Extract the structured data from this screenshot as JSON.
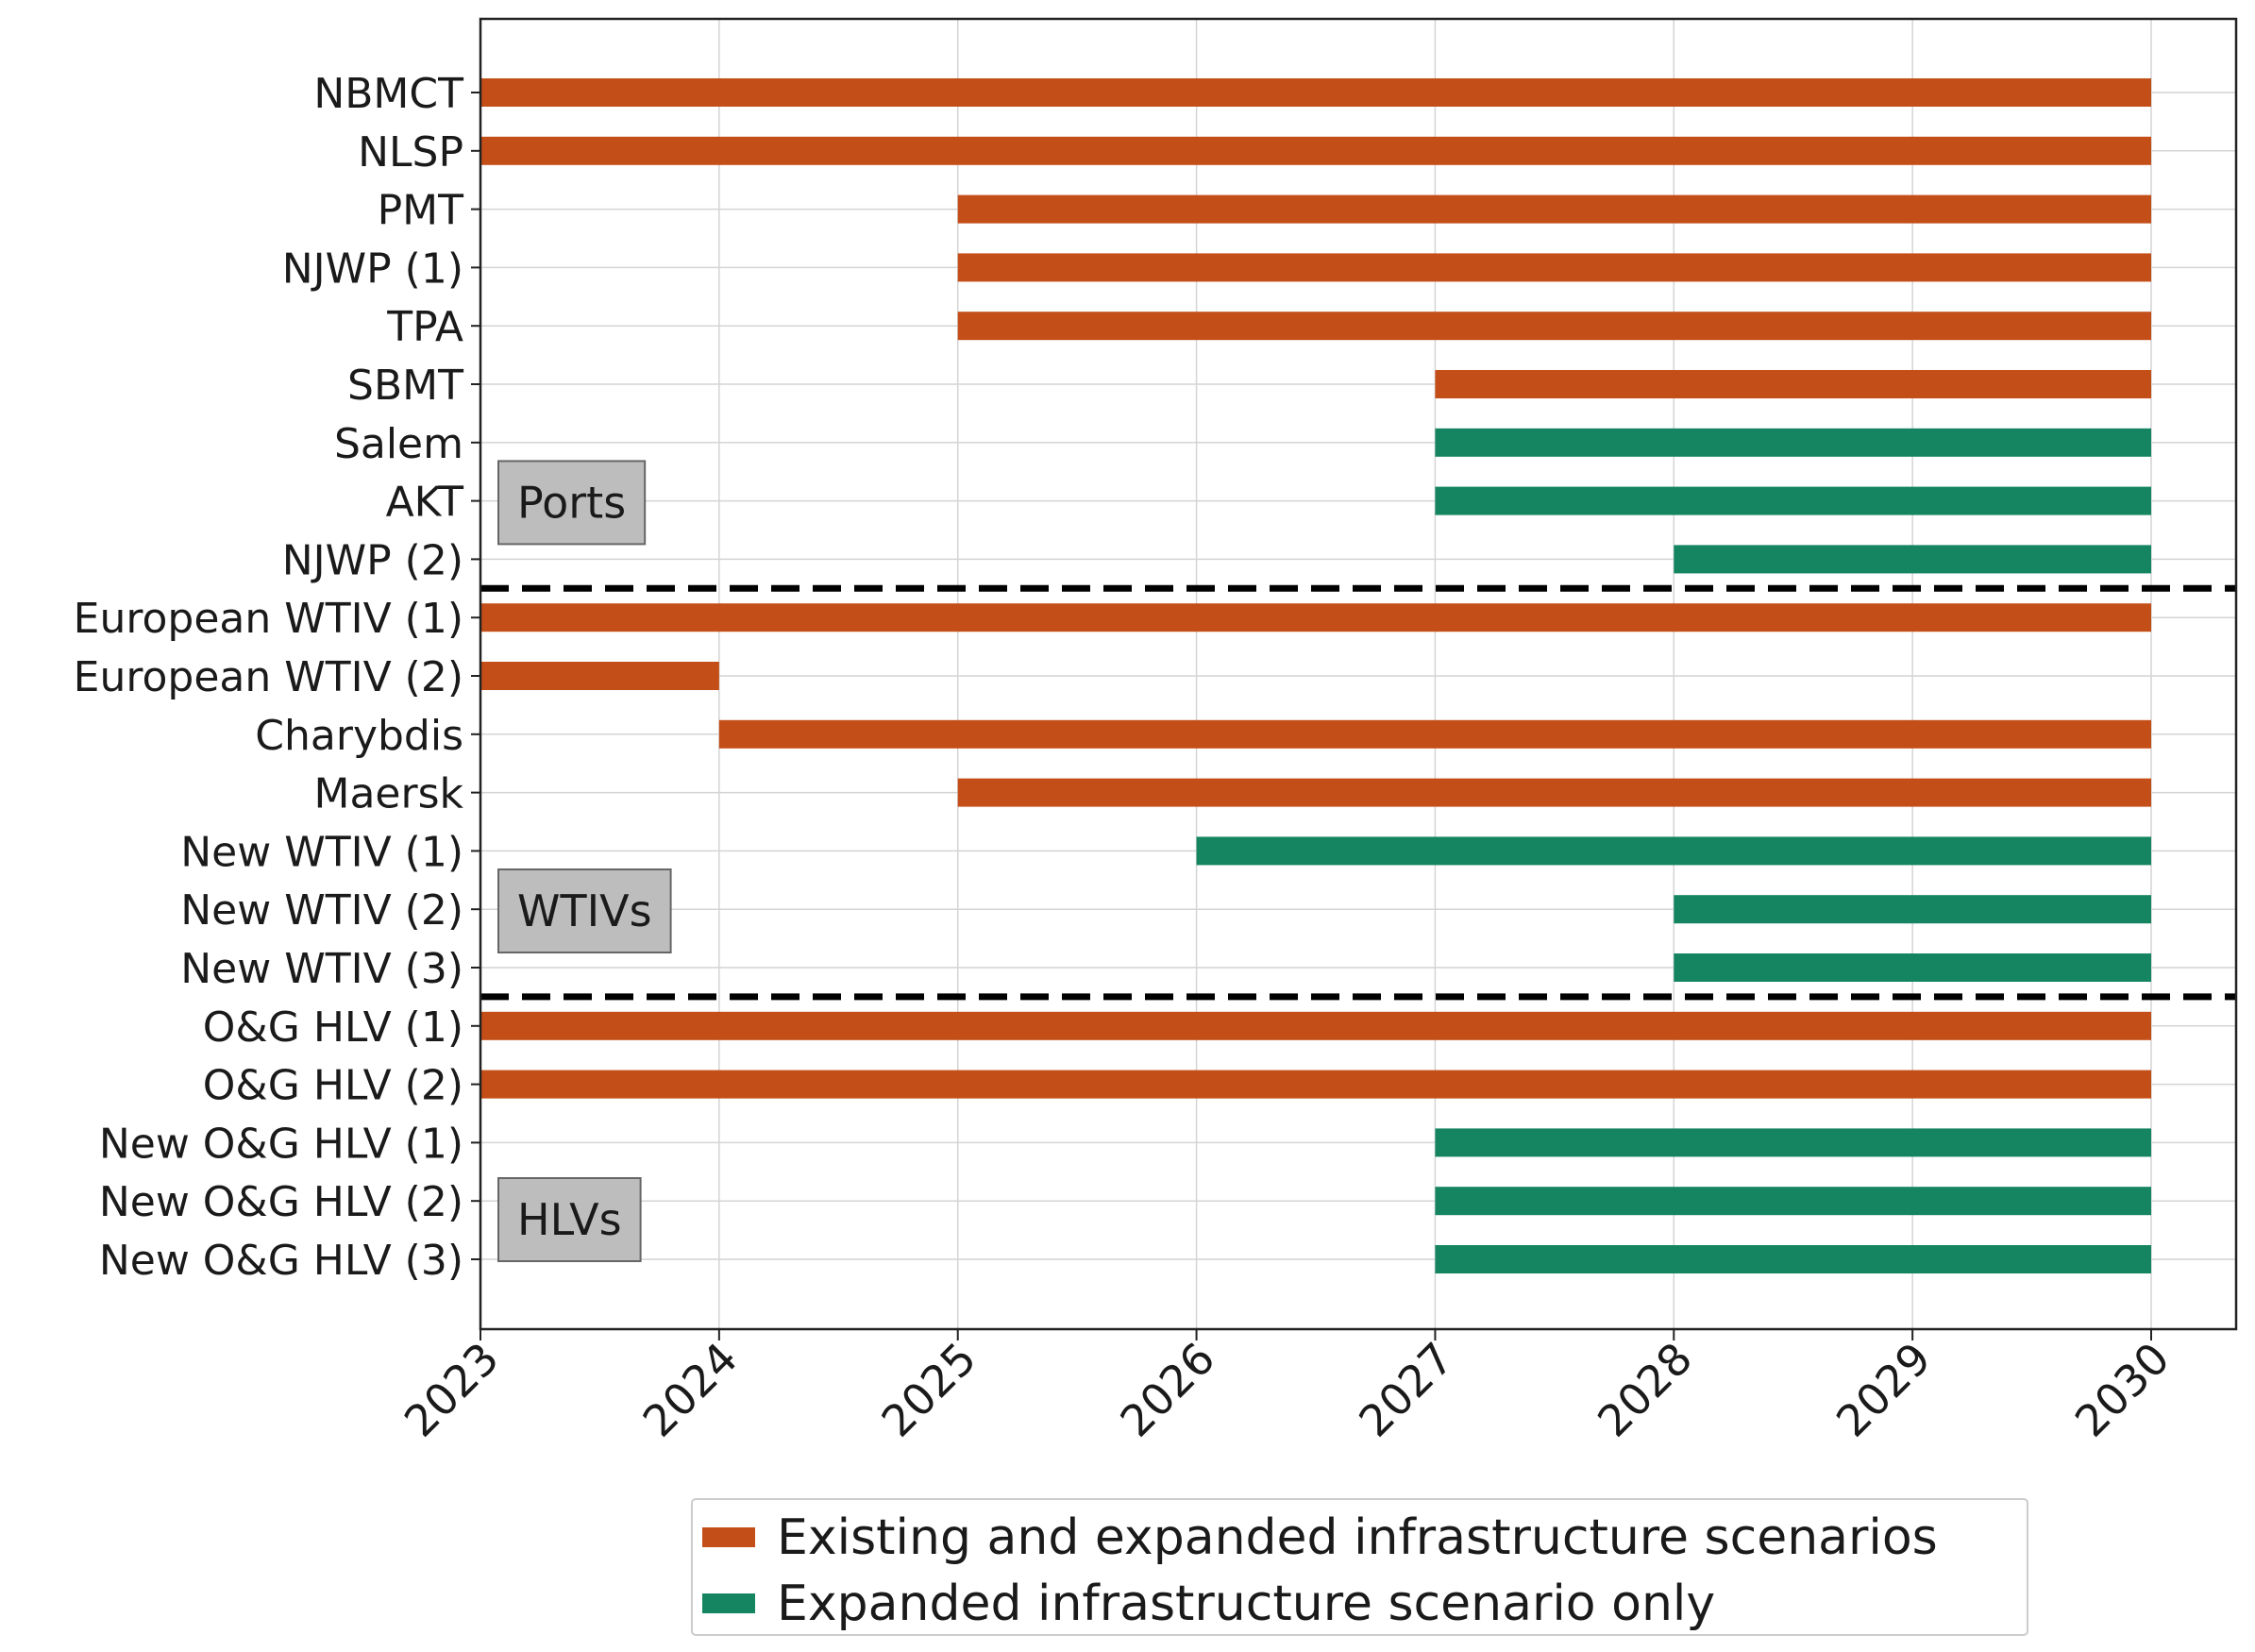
{
  "chart_data": {
    "type": "bar",
    "orientation": "horizontal",
    "xlim": [
      2023,
      2030.35
    ],
    "x_ticks": [
      "2023",
      "2024",
      "2025",
      "2026",
      "2027",
      "2028",
      "2029",
      "2030"
    ],
    "grid": true,
    "colors": {
      "existing": "#c44e18",
      "expanded": "#148560"
    },
    "legend": {
      "placement": "bottom-center",
      "entries": [
        {
          "key": "existing",
          "label": "Existing and expanded infrastructure scenarios"
        },
        {
          "key": "expanded",
          "label": "Expanded infrastructure scenario only"
        }
      ]
    },
    "groups": [
      {
        "label": "Ports",
        "first": 0,
        "last": 8
      },
      {
        "label": "WTIVs",
        "first": 9,
        "last": 15
      },
      {
        "label": "HLVs",
        "first": 16,
        "last": 20
      }
    ],
    "rows": [
      {
        "label": "NBMCT",
        "start": 2023,
        "end": 2030,
        "scenario": "existing"
      },
      {
        "label": "NLSP",
        "start": 2023,
        "end": 2030,
        "scenario": "existing"
      },
      {
        "label": "PMT",
        "start": 2025,
        "end": 2030,
        "scenario": "existing"
      },
      {
        "label": "NJWP (1)",
        "start": 2025,
        "end": 2030,
        "scenario": "existing"
      },
      {
        "label": "TPA",
        "start": 2025,
        "end": 2030,
        "scenario": "existing"
      },
      {
        "label": "SBMT",
        "start": 2027,
        "end": 2030,
        "scenario": "existing"
      },
      {
        "label": "Salem",
        "start": 2027,
        "end": 2030,
        "scenario": "expanded"
      },
      {
        "label": "AKT",
        "start": 2027,
        "end": 2030,
        "scenario": "expanded"
      },
      {
        "label": "NJWP (2)",
        "start": 2028,
        "end": 2030,
        "scenario": "expanded"
      },
      {
        "label": "European WTIV (1)",
        "start": 2023,
        "end": 2030,
        "scenario": "existing"
      },
      {
        "label": "European WTIV (2)",
        "start": 2023,
        "end": 2024,
        "scenario": "existing"
      },
      {
        "label": "Charybdis",
        "start": 2024,
        "end": 2030,
        "scenario": "existing"
      },
      {
        "label": "Maersk",
        "start": 2025,
        "end": 2030,
        "scenario": "existing"
      },
      {
        "label": "New WTIV (1)",
        "start": 2026,
        "end": 2030,
        "scenario": "expanded"
      },
      {
        "label": "New WTIV (2)",
        "start": 2028,
        "end": 2030,
        "scenario": "expanded"
      },
      {
        "label": "New WTIV (3)",
        "start": 2028,
        "end": 2030,
        "scenario": "expanded"
      },
      {
        "label": "O&G HLV (1)",
        "start": 2023,
        "end": 2030,
        "scenario": "existing"
      },
      {
        "label": "O&G HLV (2)",
        "start": 2023,
        "end": 2030,
        "scenario": "existing"
      },
      {
        "label": "New O&G HLV (1)",
        "start": 2027,
        "end": 2030,
        "scenario": "expanded"
      },
      {
        "label": "New O&G HLV (2)",
        "start": 2027,
        "end": 2030,
        "scenario": "expanded"
      },
      {
        "label": "New O&G HLV (3)",
        "start": 2027,
        "end": 2030,
        "scenario": "expanded"
      }
    ]
  }
}
